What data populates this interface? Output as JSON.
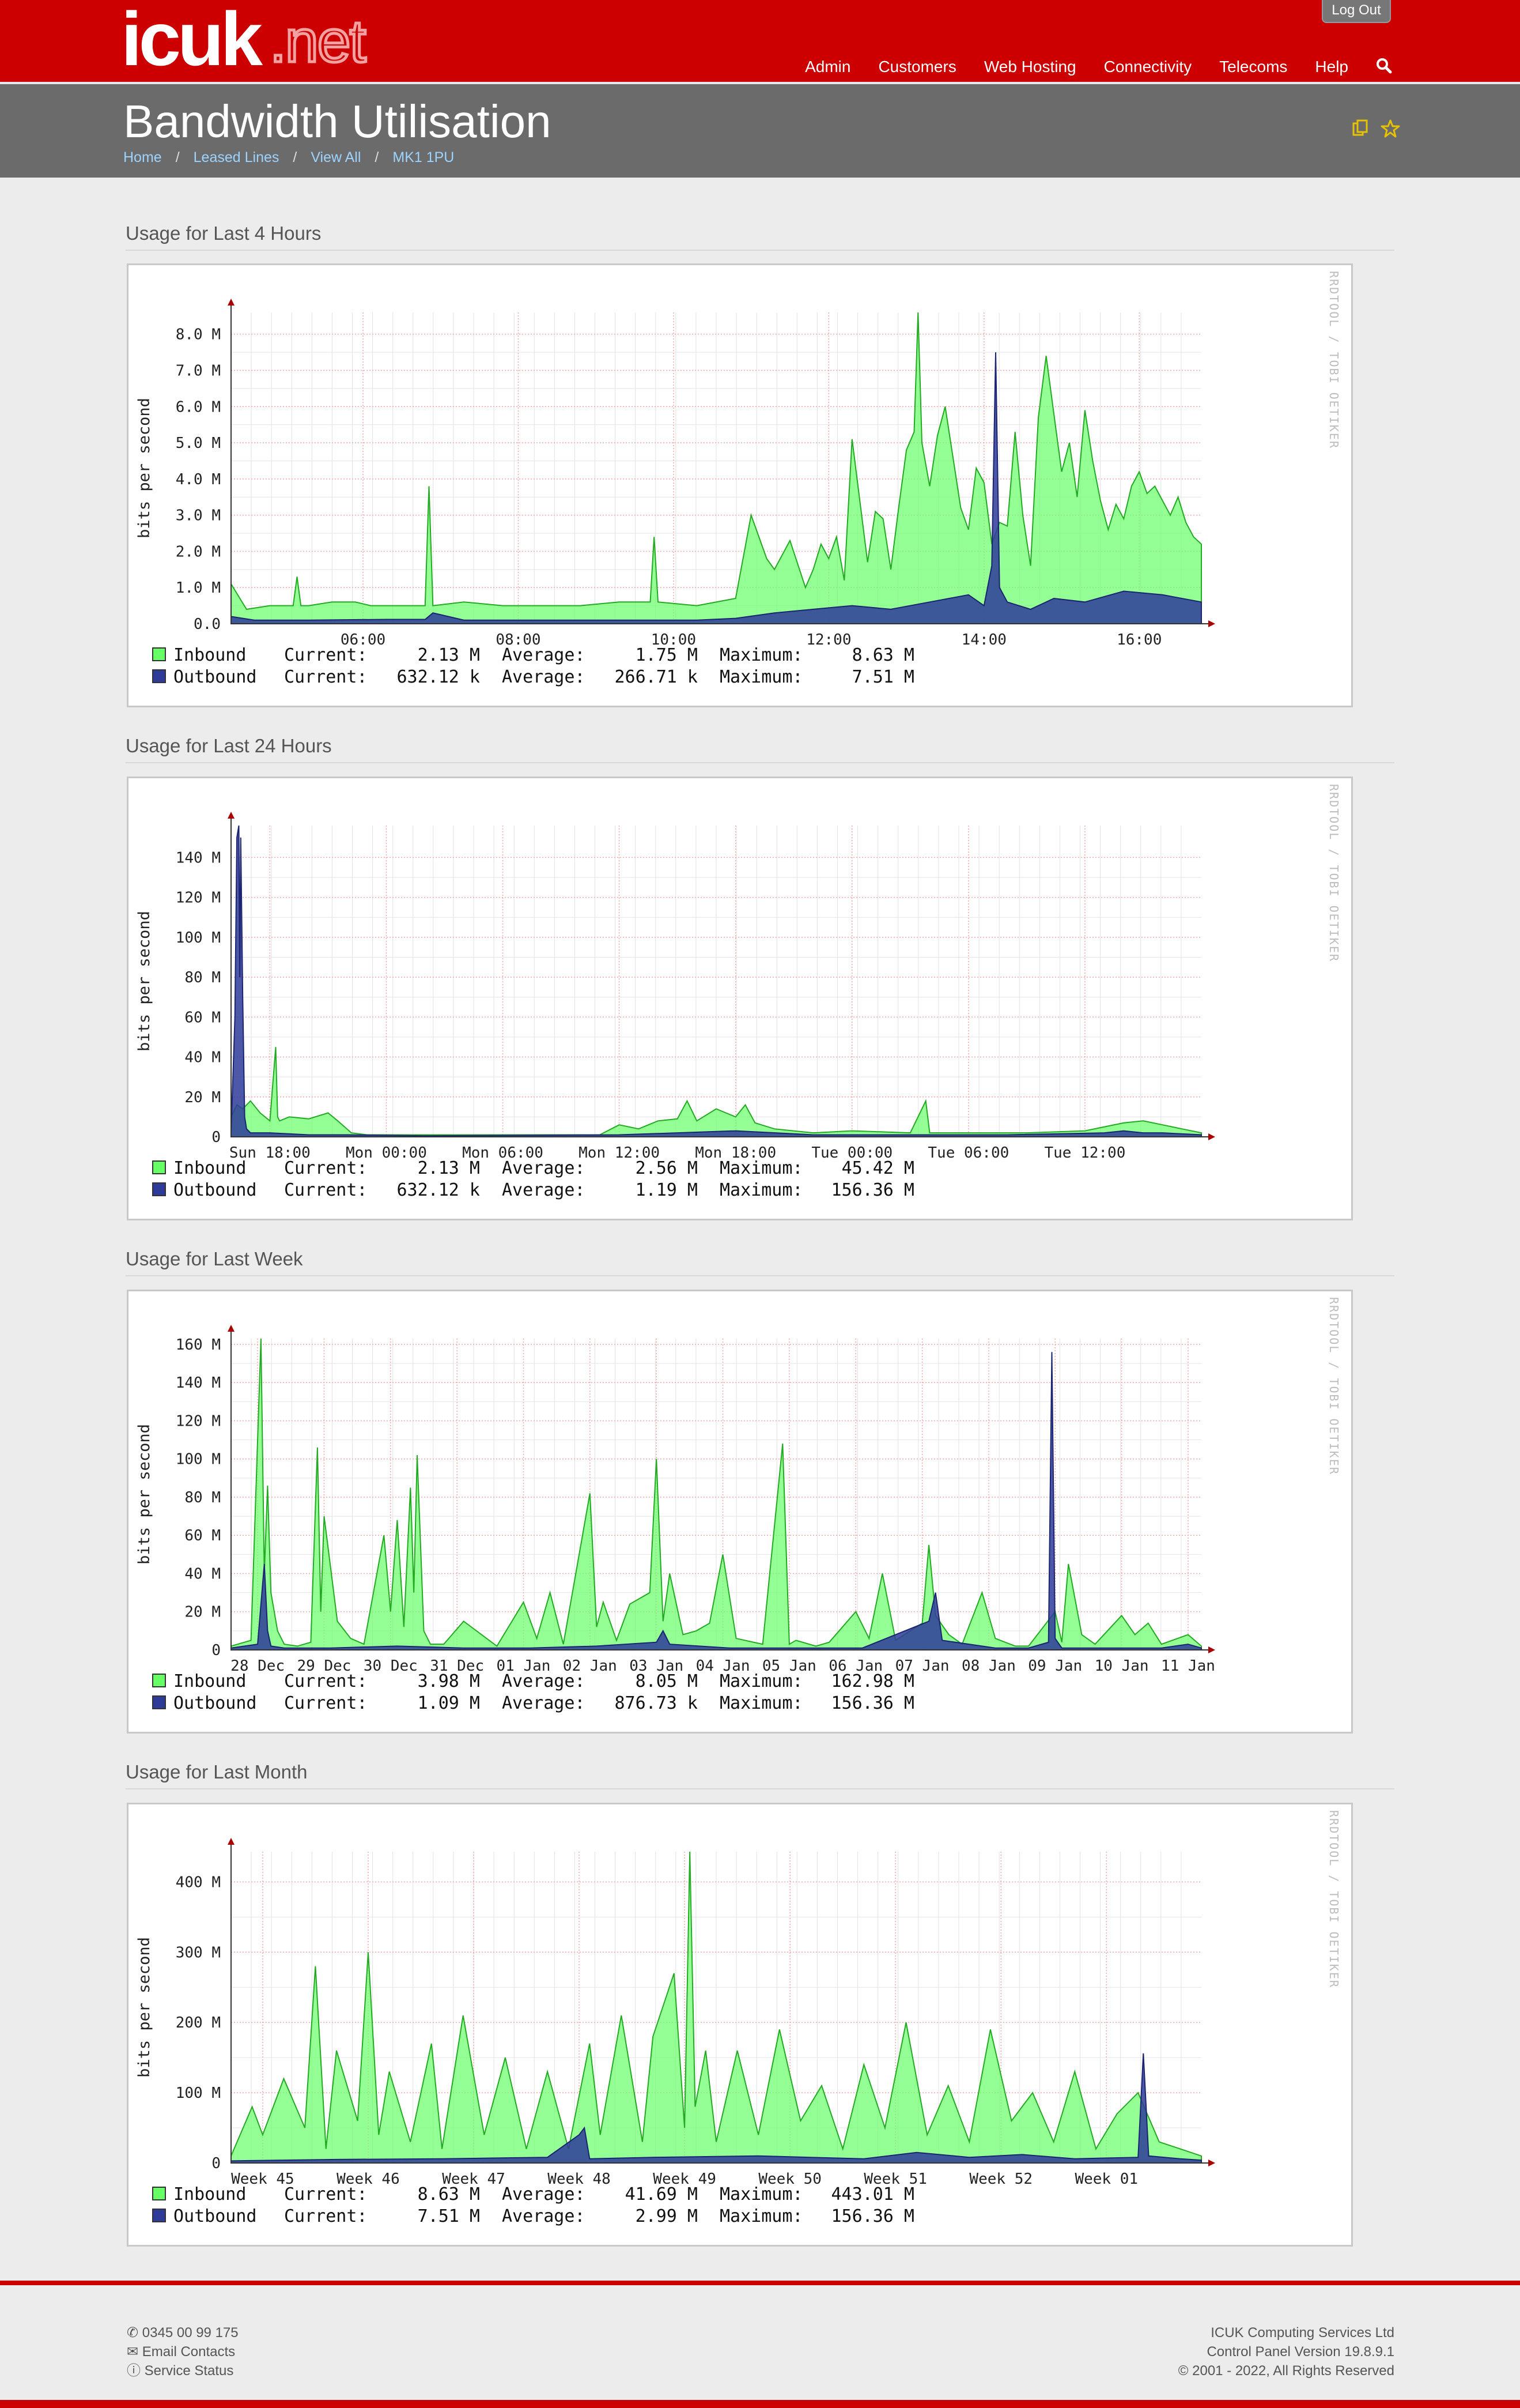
{
  "header": {
    "logo_text": "icuk",
    "logo_suffix": ".net",
    "logout_label": "Log Out",
    "nav": [
      "Admin",
      "Customers",
      "Web Hosting",
      "Connectivity",
      "Telecoms",
      "Help"
    ]
  },
  "page": {
    "title": "Bandwidth Utilisation",
    "breadcrumb": [
      "Home",
      "Leased Lines",
      "View All",
      "MK1 1PU"
    ]
  },
  "colors": {
    "inbound": "#66ff66",
    "outbound": "#2e3b99",
    "brand": "#cc0000"
  },
  "watermark": "RRDTOOL / TOBI OETIKER",
  "chart_data": [
    {
      "type": "area",
      "section_title": "Usage for Last 4 Hours",
      "ylabel": "bits per second",
      "y_ticks": [
        "0.0",
        "1.0 M",
        "2.0 M",
        "3.0 M",
        "4.0 M",
        "5.0 M",
        "6.0 M",
        "7.0 M",
        "8.0 M"
      ],
      "y_tick_values": [
        0,
        1,
        2,
        3,
        4,
        5,
        6,
        7,
        8
      ],
      "ylim": [
        0,
        8.6
      ],
      "x_ticks": [
        "06:00",
        "08:00",
        "10:00",
        "12:00",
        "14:00",
        "16:00"
      ],
      "x_tick_positions": [
        1.7,
        3.7,
        5.7,
        7.7,
        9.7,
        11.7
      ],
      "xlim": [
        0,
        12.5
      ],
      "series": [
        {
          "name": "Inbound",
          "current": "2.13 M",
          "average": "1.75 M",
          "maximum": "8.63 M",
          "x": [
            0,
            0.2,
            0.5,
            0.8,
            0.85,
            0.9,
            1.0,
            1.3,
            1.6,
            1.8,
            2.0,
            2.4,
            2.5,
            2.55,
            2.6,
            3.0,
            3.5,
            4.0,
            4.5,
            5.0,
            5.4,
            5.45,
            5.5,
            6.0,
            6.5,
            6.7,
            6.9,
            7.0,
            7.2,
            7.4,
            7.5,
            7.6,
            7.7,
            7.8,
            7.9,
            8.0,
            8.2,
            8.3,
            8.4,
            8.5,
            8.6,
            8.7,
            8.8,
            8.85,
            8.9,
            9.0,
            9.1,
            9.2,
            9.3,
            9.4,
            9.5,
            9.6,
            9.7,
            9.8,
            9.9,
            10.0,
            10.1,
            10.2,
            10.3,
            10.4,
            10.5,
            10.6,
            10.7,
            10.8,
            10.9,
            11.0,
            11.1,
            11.2,
            11.3,
            11.4,
            11.5,
            11.6,
            11.7,
            11.8,
            11.9,
            12.0,
            12.1,
            12.2,
            12.3,
            12.4,
            12.5
          ],
          "y": [
            1.1,
            0.4,
            0.5,
            0.5,
            1.3,
            0.5,
            0.5,
            0.6,
            0.6,
            0.5,
            0.5,
            0.5,
            0.5,
            3.8,
            0.5,
            0.6,
            0.5,
            0.5,
            0.5,
            0.6,
            0.6,
            2.4,
            0.6,
            0.5,
            0.7,
            3.0,
            1.8,
            1.5,
            2.3,
            1.0,
            1.5,
            2.2,
            1.8,
            2.4,
            1.2,
            5.1,
            1.7,
            3.1,
            2.9,
            1.5,
            3.2,
            4.8,
            5.3,
            8.6,
            5.0,
            3.8,
            5.2,
            6.0,
            4.6,
            3.2,
            2.6,
            4.3,
            3.9,
            2.2,
            2.8,
            2.7,
            5.3,
            3.0,
            1.6,
            5.7,
            7.4,
            5.8,
            4.2,
            5.0,
            3.5,
            5.9,
            4.5,
            3.4,
            2.6,
            3.3,
            2.9,
            3.8,
            4.2,
            3.6,
            3.8,
            3.4,
            3.0,
            3.5,
            2.8,
            2.4,
            2.2
          ]
        },
        {
          "name": "Outbound",
          "current": "632.12 k",
          "average": "266.71 k",
          "maximum": "7.51 M",
          "x": [
            0,
            0.3,
            1.0,
            2.0,
            2.5,
            2.6,
            3.0,
            4.0,
            5.0,
            6.0,
            6.5,
            7.0,
            7.5,
            8.0,
            8.5,
            9.0,
            9.5,
            9.7,
            9.8,
            9.85,
            9.9,
            10.0,
            10.3,
            10.6,
            11.0,
            11.5,
            12.0,
            12.5
          ],
          "y": [
            0.2,
            0.1,
            0.1,
            0.12,
            0.12,
            0.3,
            0.1,
            0.1,
            0.1,
            0.1,
            0.15,
            0.3,
            0.4,
            0.5,
            0.4,
            0.6,
            0.8,
            0.5,
            1.6,
            7.5,
            1.0,
            0.6,
            0.4,
            0.7,
            0.6,
            0.9,
            0.8,
            0.6
          ]
        }
      ]
    },
    {
      "type": "area",
      "section_title": "Usage for Last 24 Hours",
      "ylabel": "bits per second",
      "y_ticks": [
        "0",
        "20 M",
        "40 M",
        "60 M",
        "80 M",
        "100 M",
        "120 M",
        "140 M"
      ],
      "y_tick_values": [
        0,
        20,
        40,
        60,
        80,
        100,
        120,
        140
      ],
      "ylim": [
        0,
        156
      ],
      "x_ticks": [
        "Sun 18:00",
        "Mon 00:00",
        "Mon 06:00",
        "Mon 12:00",
        "Mon 18:00",
        "Tue 00:00",
        "Tue 06:00",
        "Tue 12:00"
      ],
      "x_tick_positions": [
        2,
        8,
        14,
        20,
        26,
        32,
        38,
        44
      ],
      "xlim": [
        0,
        50
      ],
      "series": [
        {
          "name": "Inbound",
          "current": "2.13 M",
          "average": "2.56 M",
          "maximum": "45.42 M",
          "x": [
            0,
            0.3,
            0.6,
            1.0,
            1.5,
            2.0,
            2.3,
            2.4,
            2.5,
            3.0,
            4.0,
            5.0,
            5.5,
            6.2,
            7.0,
            10,
            13,
            16,
            19,
            20,
            21,
            22,
            23,
            23.5,
            24,
            25,
            26,
            26.5,
            27,
            28,
            30,
            32,
            35,
            35.8,
            36,
            38,
            41,
            44,
            46,
            47,
            48,
            49,
            50
          ],
          "y": [
            10,
            16,
            14,
            18,
            12,
            8,
            45,
            10,
            8,
            10,
            9,
            12,
            8,
            2,
            1,
            1,
            1,
            1,
            1,
            6,
            4,
            8,
            9,
            18,
            8,
            14,
            10,
            16,
            7,
            4,
            2,
            3,
            2,
            18,
            2,
            2,
            2,
            3,
            7,
            8,
            6,
            4,
            2
          ]
        },
        {
          "name": "Outbound",
          "current": "632.12 k",
          "average": "1.19 M",
          "maximum": "156.36 M",
          "x": [
            0,
            0.2,
            0.3,
            0.4,
            0.45,
            0.5,
            0.6,
            0.7,
            0.8,
            1.0,
            2.0,
            4.0,
            6.0,
            10,
            20,
            23,
            26,
            30,
            40,
            45,
            46,
            47,
            48,
            50
          ],
          "y": [
            2,
            60,
            150,
            156,
            80,
            150,
            70,
            10,
            4,
            2,
            2,
            1,
            1,
            0.5,
            1,
            2,
            3,
            1,
            1,
            2,
            3,
            2,
            2,
            1
          ]
        }
      ]
    },
    {
      "type": "area",
      "section_title": "Usage for Last Week",
      "ylabel": "bits per second",
      "y_ticks": [
        "0",
        "20 M",
        "40 M",
        "60 M",
        "80 M",
        "100 M",
        "120 M",
        "140 M",
        "160 M"
      ],
      "y_tick_values": [
        0,
        20,
        40,
        60,
        80,
        100,
        120,
        140,
        160
      ],
      "ylim": [
        0,
        163
      ],
      "x_ticks": [
        "28 Dec",
        "29 Dec",
        "30 Dec",
        "31 Dec",
        "01 Jan",
        "02 Jan",
        "03 Jan",
        "04 Jan",
        "05 Jan",
        "06 Jan",
        "07 Jan",
        "08 Jan",
        "09 Jan",
        "10 Jan",
        "11 Jan"
      ],
      "x_tick_positions": [
        0.4,
        1.4,
        2.4,
        3.4,
        4.4,
        5.4,
        6.4,
        7.4,
        8.4,
        9.4,
        10.4,
        11.4,
        12.4,
        13.4,
        14.4
      ],
      "xlim": [
        0,
        14.6
      ],
      "series": [
        {
          "name": "Inbound",
          "current": "3.98 M",
          "average": "8.05 M",
          "maximum": "162.98 M",
          "x": [
            0,
            0.3,
            0.45,
            0.5,
            0.55,
            0.6,
            0.7,
            0.8,
            1.0,
            1.2,
            1.3,
            1.35,
            1.4,
            1.6,
            1.8,
            2.0,
            2.3,
            2.4,
            2.5,
            2.6,
            2.7,
            2.75,
            2.8,
            2.9,
            3.0,
            3.2,
            3.5,
            4.0,
            4.4,
            4.6,
            4.8,
            5.0,
            5.4,
            5.5,
            5.6,
            5.8,
            6.0,
            6.3,
            6.4,
            6.5,
            6.6,
            6.8,
            7.0,
            7.2,
            7.4,
            7.6,
            8.0,
            8.3,
            8.4,
            8.5,
            8.8,
            9.0,
            9.4,
            9.6,
            9.8,
            10.0,
            10.4,
            10.5,
            10.6,
            10.8,
            11.0,
            11.3,
            11.5,
            11.8,
            12.0,
            12.4,
            12.5,
            12.6,
            12.8,
            13.0,
            13.4,
            13.6,
            13.8,
            14.0,
            14.4,
            14.6
          ],
          "y": [
            2,
            5,
            163,
            40,
            86,
            30,
            10,
            3,
            2,
            4,
            106,
            20,
            70,
            15,
            6,
            3,
            60,
            20,
            68,
            12,
            85,
            30,
            102,
            10,
            3,
            3,
            15,
            2,
            25,
            6,
            30,
            3,
            82,
            12,
            25,
            5,
            24,
            30,
            100,
            15,
            40,
            8,
            10,
            14,
            50,
            6,
            3,
            108,
            3,
            5,
            2,
            4,
            20,
            6,
            40,
            5,
            14,
            55,
            18,
            8,
            3,
            30,
            6,
            2,
            2,
            20,
            4,
            45,
            8,
            3,
            18,
            8,
            14,
            3,
            8,
            2
          ]
        },
        {
          "name": "Outbound",
          "current": "1.09 M",
          "average": "876.73 k",
          "maximum": "156.36 M",
          "x": [
            0,
            0.4,
            0.5,
            0.55,
            0.6,
            0.8,
            1.5,
            2.5,
            3.5,
            4.5,
            5.5,
            6.4,
            6.5,
            6.6,
            7.5,
            8.5,
            9.5,
            10.5,
            10.6,
            10.7,
            11.5,
            12.0,
            12.3,
            12.35,
            12.4,
            12.5,
            13.5,
            14.0,
            14.4,
            14.6
          ],
          "y": [
            1,
            3,
            45,
            10,
            2,
            1,
            1,
            2,
            1,
            1,
            2,
            4,
            10,
            3,
            1,
            1,
            1,
            15,
            30,
            5,
            1,
            1,
            4,
            156,
            6,
            1,
            1,
            1,
            3,
            1
          ]
        }
      ]
    },
    {
      "type": "area",
      "section_title": "Usage for Last Month",
      "ylabel": "bits per second",
      "y_ticks": [
        "0",
        "100 M",
        "200 M",
        "300 M",
        "400 M"
      ],
      "y_tick_values": [
        0,
        100,
        200,
        300,
        400
      ],
      "ylim": [
        0,
        443
      ],
      "x_ticks": [
        "Week 45",
        "Week 46",
        "Week 47",
        "Week 48",
        "Week 49",
        "Week 50",
        "Week 51",
        "Week 52",
        "Week 01"
      ],
      "x_tick_positions": [
        0.3,
        1.3,
        2.3,
        3.3,
        4.3,
        5.3,
        6.3,
        7.3,
        8.3
      ],
      "xlim": [
        0,
        9.2
      ],
      "series": [
        {
          "name": "Inbound",
          "current": "8.63 M",
          "average": "41.69 M",
          "maximum": "443.01 M",
          "x": [
            0,
            0.2,
            0.3,
            0.5,
            0.7,
            0.8,
            0.9,
            1.0,
            1.2,
            1.3,
            1.4,
            1.5,
            1.7,
            1.9,
            2.0,
            2.2,
            2.4,
            2.6,
            2.8,
            3.0,
            3.2,
            3.4,
            3.5,
            3.7,
            3.9,
            4.0,
            4.2,
            4.3,
            4.35,
            4.4,
            4.5,
            4.6,
            4.8,
            5.0,
            5.2,
            5.4,
            5.6,
            5.8,
            6.0,
            6.2,
            6.4,
            6.6,
            6.8,
            7.0,
            7.2,
            7.4,
            7.6,
            7.8,
            8.0,
            8.2,
            8.4,
            8.6,
            8.8,
            9.0,
            9.2
          ],
          "y": [
            10,
            80,
            40,
            120,
            50,
            280,
            20,
            160,
            60,
            300,
            40,
            130,
            30,
            170,
            20,
            210,
            40,
            150,
            20,
            130,
            20,
            170,
            40,
            210,
            30,
            180,
            270,
            50,
            443,
            80,
            160,
            30,
            160,
            40,
            190,
            60,
            110,
            20,
            140,
            50,
            200,
            40,
            110,
            30,
            190,
            60,
            100,
            30,
            130,
            20,
            70,
            100,
            30,
            20,
            10
          ]
        },
        {
          "name": "Outbound",
          "current": "7.51 M",
          "average": "2.99 M",
          "maximum": "156.36 M",
          "x": [
            0,
            1.0,
            2.0,
            3.0,
            3.3,
            3.35,
            3.4,
            4.0,
            5.0,
            6.0,
            6.5,
            7.0,
            7.5,
            8.0,
            8.6,
            8.65,
            8.7,
            9.0,
            9.2
          ],
          "y": [
            3,
            5,
            6,
            8,
            40,
            50,
            6,
            8,
            10,
            6,
            15,
            8,
            12,
            6,
            8,
            156,
            10,
            6,
            4
          ]
        }
      ]
    }
  ],
  "footer": {
    "phone": "0345 00 99 175",
    "email": "Email Contacts",
    "status": "Service Status",
    "company": "ICUK Computing Services Ltd",
    "version": "Control Panel Version 19.8.9.1",
    "copyright": "© 2001 - 2022, All Rights Reserved"
  }
}
